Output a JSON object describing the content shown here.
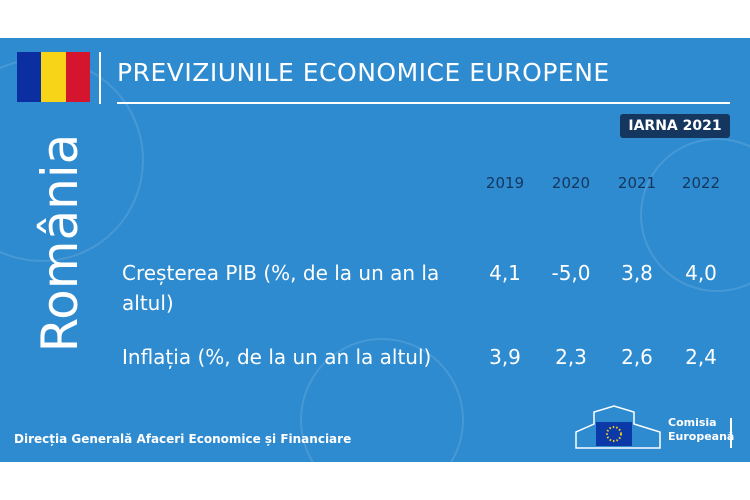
{
  "header": {
    "title": "PREVIZIUNILE ECONOMICE EUROPENE",
    "season": "IARNA 2021",
    "country": "România"
  },
  "table": {
    "columns": [
      "2019",
      "2020",
      "2021",
      "2022"
    ],
    "rows": [
      {
        "label": "Creșterea PIB (%, de la un an la altul)",
        "values": [
          "4,1",
          "-5,0",
          "3,8",
          "4,0"
        ]
      },
      {
        "label": "Inflația (%, de la un an la altul)",
        "values": [
          "3,9",
          "2,3",
          "2,6",
          "2,4"
        ]
      }
    ]
  },
  "footer": {
    "text": "Direcția Generală Afaceri Economice și Financiare",
    "logo": [
      "Comisia",
      "Europeană"
    ]
  }
}
